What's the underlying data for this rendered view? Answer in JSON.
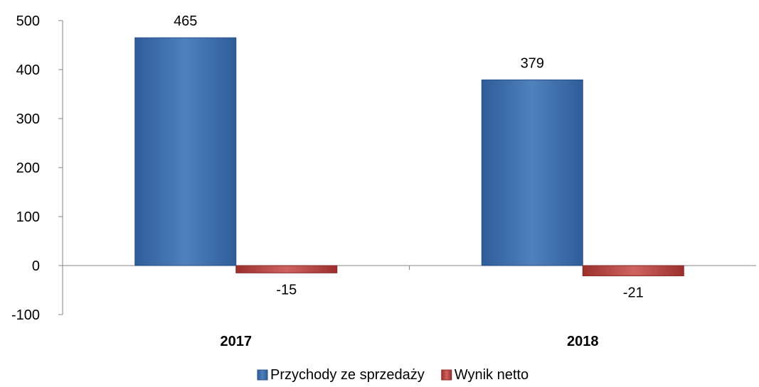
{
  "chart_data": {
    "type": "bar",
    "categories": [
      "2017",
      "2018"
    ],
    "series": [
      {
        "name": "Przychody ze sprzedaży",
        "values": [
          465,
          379
        ],
        "color": "#4F81BD"
      },
      {
        "name": "Wynik netto",
        "values": [
          -15,
          -21
        ],
        "color": "#C0504D"
      }
    ],
    "data_labels": [
      [
        "465",
        "379"
      ],
      [
        "-15",
        "-21"
      ]
    ],
    "title": "",
    "xlabel": "",
    "ylabel": "",
    "ylim": [
      -100,
      500
    ],
    "yticks": [
      "-100",
      "0",
      "100",
      "200",
      "300",
      "400",
      "500"
    ],
    "grid": false,
    "legend": "bottom"
  }
}
